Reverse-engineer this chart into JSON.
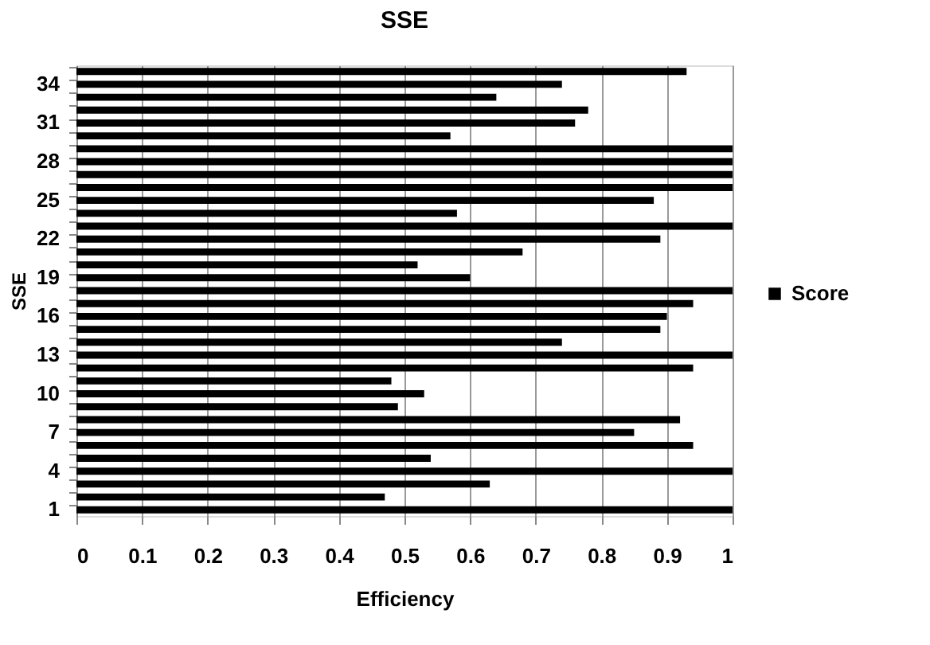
{
  "chart_data": {
    "type": "bar",
    "orientation": "horizontal",
    "title": "SSE",
    "xlabel": "Efficiency",
    "ylabel": "SSE",
    "categories": [
      null,
      "34",
      null,
      null,
      "31",
      null,
      null,
      "28",
      null,
      null,
      "25",
      null,
      null,
      "22",
      null,
      null,
      "19",
      null,
      null,
      "16",
      null,
      null,
      "13",
      null,
      null,
      "10",
      null,
      null,
      "7",
      null,
      null,
      "4",
      null,
      null,
      "1"
    ],
    "series": [
      {
        "name": "Score",
        "color": "#000000",
        "values": [
          0.93,
          0.74,
          0.64,
          0.78,
          0.76,
          0.57,
          1,
          1,
          1,
          1,
          0.88,
          0.58,
          1,
          0.89,
          0.68,
          0.52,
          0.6,
          1,
          0.94,
          0.9,
          0.89,
          0.74,
          1,
          0.94,
          0.48,
          0.53,
          0.49,
          0.92,
          0.85,
          0.94,
          0.54,
          1,
          0.63,
          0.47,
          1
        ]
      }
    ],
    "xlim": [
      0,
      1
    ],
    "xticks": [
      0,
      0.1,
      0.2,
      0.3,
      0.4,
      0.5,
      0.6,
      0.7,
      0.8,
      0.9,
      1
    ],
    "grid": "x",
    "legend": "right"
  }
}
